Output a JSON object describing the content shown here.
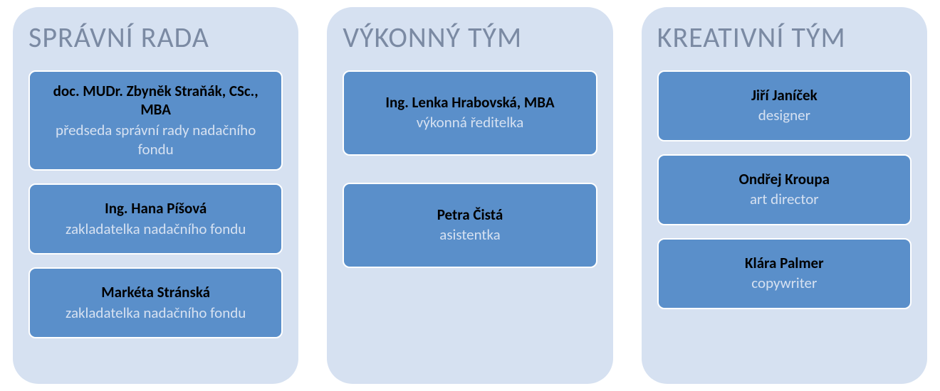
{
  "type": "infographic",
  "layout": "three-column-panels",
  "background_color": "#ffffff",
  "panel_bg": "#d6e1f1",
  "panel_radius": 36,
  "title_color": "#7b8aa3",
  "title_fontsize": 40,
  "card_bg": "#5a8fca",
  "card_border": "#ffffff",
  "card_radius": 10,
  "card_name_color": "#000000",
  "card_name_fontsize": 21,
  "card_name_weight": 700,
  "card_role_color": "#d6e1f1",
  "card_role_fontsize": 21,
  "columns": [
    {
      "title": "SPRÁVNÍ RADA",
      "members": [
        {
          "name": "doc. MUDr. Zbyněk Straňák, CSc., MBA",
          "role": "předseda správní rady nadačního fondu"
        },
        {
          "name": "Ing. Hana Píšová",
          "role": "zakladatelka nadačního fondu"
        },
        {
          "name": "Markéta Stránská",
          "role": "zakladatelka nadačního fondu"
        }
      ]
    },
    {
      "title": "VÝKONNÝ TÝM",
      "members": [
        {
          "name": "Ing. Lenka Hrabovská, MBA",
          "role": "výkonná ředitelka"
        },
        {
          "name": "Petra Čistá",
          "role": "asistentka"
        }
      ]
    },
    {
      "title": "KREATIVNÍ TÝM",
      "members": [
        {
          "name": "Jiří Janíček",
          "role": "designer"
        },
        {
          "name": "Ondřej Kroupa",
          "role": "art director"
        },
        {
          "name": "Klára Palmer",
          "role": "copywriter"
        }
      ]
    }
  ]
}
